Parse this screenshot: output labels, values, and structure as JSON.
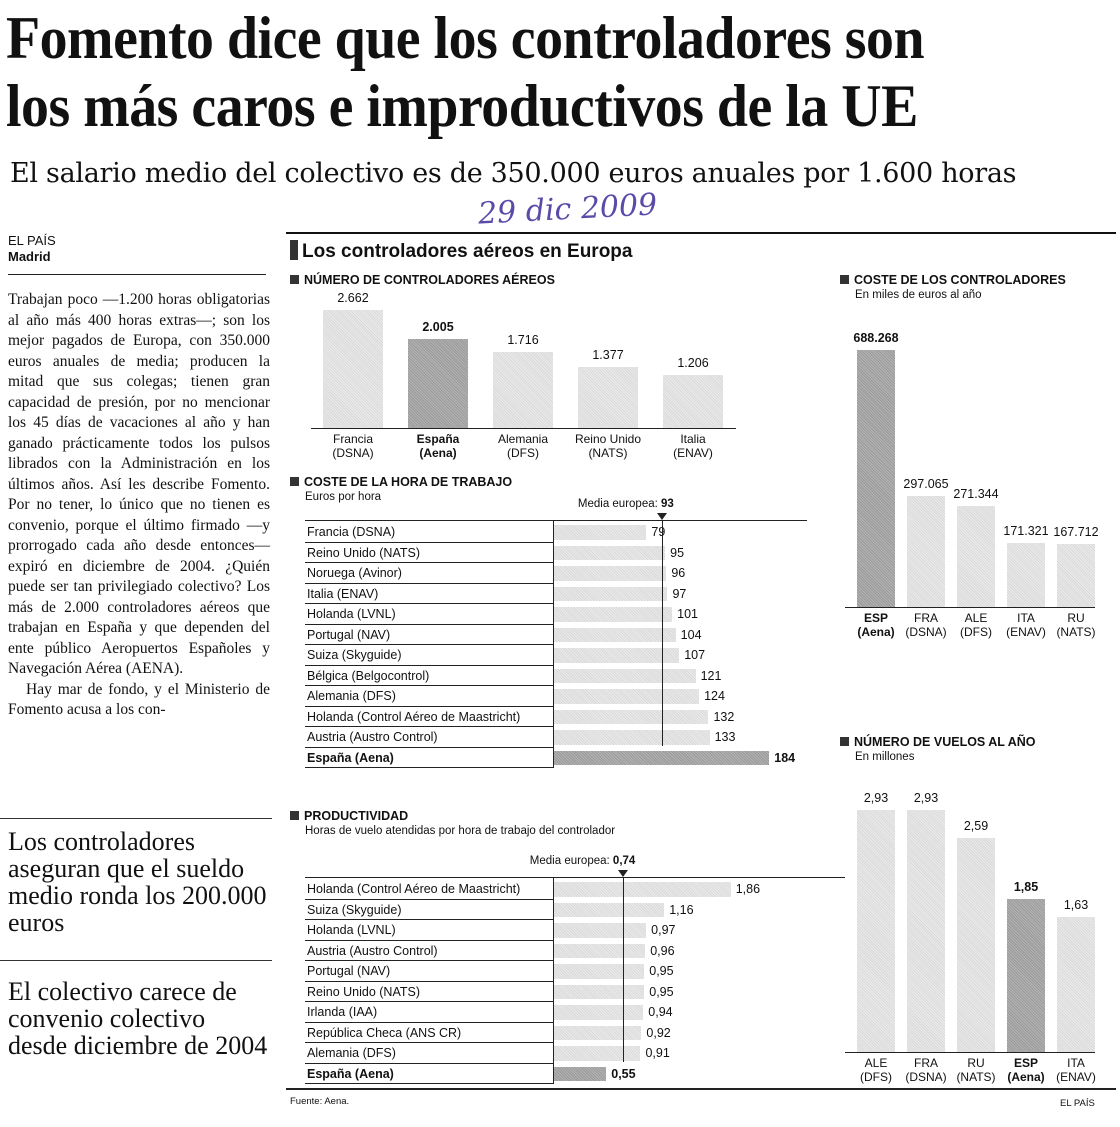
{
  "headline": {
    "line1": "Fomento dice que los controladores son",
    "line2": "los más caros e improductivos de la UE"
  },
  "subhead": "El salario medio del colectivo es de 350.000 euros anuales por 1.600 horas",
  "handwritten_date": "29 dic 2009",
  "byline": {
    "source": "EL PAÍS",
    "place": "Madrid"
  },
  "body": {
    "p1": "Trabajan poco —1.200 horas obligatorias al año más 400 horas extras—; son los mejor pagados de Europa, con 350.000 euros anuales de media; producen la mitad que sus colegas; tienen gran capacidad de presión, por no mencionar los 45 días de vacaciones al año y han ganado prácticamente todos los pulsos librados con la Administración en los últimos años. Así les describe Fomento. Por no tener, lo único que no tienen es convenio, porque el último firmado —y prorrogado cada año desde entonces— expiró en diciembre de 2004. ¿Quién puede ser tan privilegiado colectivo? Los más de 2.000 controladores aéreos que trabajan en España y que dependen del ente público Aeropuertos Españoles y Navegación Aérea (AENA).",
    "p2": "Hay mar de fondo, y el Ministerio de Fomento acusa a los con-"
  },
  "pullquotes": [
    "Los controladores aseguran que el sueldo medio ronda los 200.000 euros",
    "El colectivo carece de convenio colectivo desde diciembre de 2004"
  ],
  "infographic": {
    "title": "Los controladores aéreos en Europa",
    "source": "Fuente: Aena.",
    "credit": "EL PAÍS"
  },
  "chart_data": [
    {
      "type": "bar",
      "title": "NÚMERO DE CONTROLADORES AÉREOS",
      "categories": [
        "Francia (DSNA)",
        "España (Aena)",
        "Alemania (DFS)",
        "Reino Unido (NATS)",
        "Italia (ENAV)"
      ],
      "cat_line1": [
        "Francia",
        "España",
        "Alemania",
        "Reino Unido",
        "Italia"
      ],
      "cat_line2": [
        "(DSNA)",
        "(Aena)",
        "(DFS)",
        "(NATS)",
        "(ENAV)"
      ],
      "values": [
        2662,
        2005,
        1716,
        1377,
        1206
      ],
      "labels": [
        "2.662",
        "2.005",
        "1.716",
        "1.377",
        "1.206"
      ],
      "highlight": 1
    },
    {
      "type": "bar",
      "orientation": "horizontal",
      "title": "COSTE DE LA HORA DE TRABAJO",
      "subtitle": "Euros por hora",
      "mean_label": "Media europea: ",
      "mean_value_label": "93",
      "mean": 93,
      "categories": [
        "Francia (DSNA)",
        "Reino Unido (NATS)",
        "Noruega (Avinor)",
        "Italia (ENAV)",
        "Holanda (LVNL)",
        "Portugal (NAV)",
        "Suiza (Skyguide)",
        "Bélgica (Belgocontrol)",
        "Alemania (DFS)",
        "Holanda (Control Aéreo de Maastricht)",
        "Austria (Austro Control)",
        "España (Aena)"
      ],
      "values": [
        79,
        95,
        96,
        97,
        101,
        104,
        107,
        121,
        124,
        132,
        133,
        184
      ],
      "labels": [
        "79",
        "95",
        "96",
        "97",
        "101",
        "104",
        "107",
        "121",
        "124",
        "132",
        "133",
        "184"
      ],
      "highlight": 11
    },
    {
      "type": "bar",
      "orientation": "horizontal",
      "title": "PRODUCTIVIDAD",
      "subtitle": "Horas de vuelo atendidas por hora de trabajo del controlador",
      "mean_label": "Media europea: ",
      "mean_value_label": "0,74",
      "mean": 0.74,
      "categories": [
        "Holanda (Control Aéreo de Maastricht)",
        "Suiza (Skyguide)",
        "Holanda (LVNL)",
        "Austria (Austro Control)",
        "Portugal (NAV)",
        "Reino Unido (NATS)",
        "Irlanda (IAA)",
        "República Checa (ANS CR)",
        "Alemania (DFS)",
        "España (Aena)"
      ],
      "values": [
        1.86,
        1.16,
        0.97,
        0.96,
        0.95,
        0.95,
        0.94,
        0.92,
        0.91,
        0.55
      ],
      "labels": [
        "1,86",
        "1,16",
        "0,97",
        "0,96",
        "0,95",
        "0,95",
        "0,94",
        "0,92",
        "0,91",
        "0,55"
      ],
      "highlight": 9
    },
    {
      "type": "bar",
      "title": "COSTE DE LOS CONTROLADORES",
      "subtitle": "En miles de euros al año",
      "cat_line1": [
        "ESP",
        "FRA",
        "ALE",
        "ITA",
        "RU"
      ],
      "cat_line2": [
        "(Aena)",
        "(DSNA)",
        "(DFS)",
        "(ENAV)",
        "(NATS)"
      ],
      "values": [
        688268,
        297065,
        271344,
        171321,
        167712
      ],
      "labels": [
        "688.268",
        "297.065",
        "271.344",
        "171.321",
        "167.712"
      ],
      "highlight": 0
    },
    {
      "type": "bar",
      "title": "NÚMERO DE VUELOS AL AÑO",
      "subtitle": "En millones",
      "cat_line1": [
        "ALE",
        "FRA",
        "RU",
        "ESP",
        "ITA"
      ],
      "cat_line2": [
        "(DFS)",
        "(DSNA)",
        "(NATS)",
        "(Aena)",
        "(ENAV)"
      ],
      "values": [
        2.93,
        2.93,
        2.59,
        1.85,
        1.63
      ],
      "labels": [
        "2,93",
        "2,93",
        "2,59",
        "1,85",
        "1,63"
      ],
      "highlight": 3
    }
  ]
}
